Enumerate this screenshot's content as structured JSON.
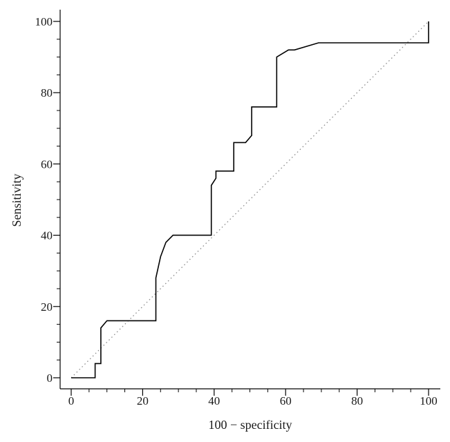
{
  "chart_data": {
    "type": "line",
    "title": "",
    "xlabel": "100 − specificity",
    "ylabel": "Sensitivity",
    "xlim": [
      0,
      100
    ],
    "ylim": [
      0,
      100
    ],
    "x_ticks": [
      0,
      20,
      40,
      60,
      80,
      100
    ],
    "y_ticks": [
      0,
      20,
      40,
      60,
      80,
      100
    ],
    "x_minor_step": 5,
    "y_minor_step": 5,
    "grid": false,
    "legend": "none",
    "series": [
      {
        "style": "solid",
        "color": "#000000",
        "points": [
          [
            0,
            0
          ],
          [
            6.7,
            0
          ],
          [
            6.7,
            4
          ],
          [
            8.3,
            4
          ],
          [
            8.3,
            14
          ],
          [
            10,
            16
          ],
          [
            23.7,
            16
          ],
          [
            23.7,
            28
          ],
          [
            25,
            34
          ],
          [
            26.5,
            38
          ],
          [
            28.5,
            40
          ],
          [
            39.2,
            40
          ],
          [
            39.2,
            54
          ],
          [
            40.5,
            56
          ],
          [
            40.5,
            58
          ],
          [
            45.5,
            58
          ],
          [
            45.5,
            66
          ],
          [
            48.8,
            66
          ],
          [
            50.5,
            68
          ],
          [
            50.5,
            76
          ],
          [
            57.5,
            76
          ],
          [
            57.5,
            90
          ],
          [
            60.8,
            92
          ],
          [
            62.5,
            92
          ],
          [
            69.2,
            94
          ],
          [
            100,
            94
          ],
          [
            100,
            100
          ]
        ]
      },
      {
        "style": "dotted",
        "color": "#888888",
        "points": [
          [
            0,
            0
          ],
          [
            100,
            100
          ]
        ]
      }
    ]
  }
}
